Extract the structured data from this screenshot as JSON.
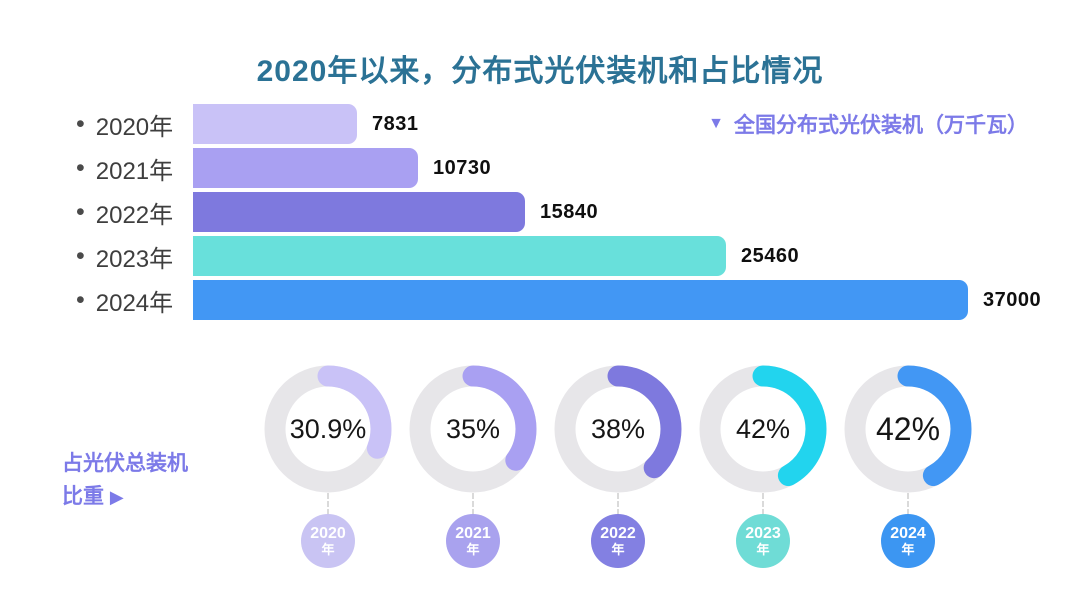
{
  "page": {
    "title": "2020年以来，分布式光伏装机和占比情况",
    "title_color": "#2B7295"
  },
  "legend": {
    "icon_name": "triangle-down-icon",
    "icon": "▼",
    "label": "全国分布式光伏装机（万千瓦）",
    "color": "#7C7AE8"
  },
  "bars": {
    "bullet": "•",
    "rows": [
      {
        "label": "2020年",
        "value": "7831",
        "color": "#C9C2F7"
      },
      {
        "label": "2021年",
        "value": "10730",
        "color": "#A9A0F2"
      },
      {
        "label": "2022年",
        "value": "15840",
        "color": "#7E79DE"
      },
      {
        "label": "2023年",
        "value": "25460",
        "color": "#68E0DB"
      },
      {
        "label": "2024年",
        "value": "37000",
        "color": "#4297F4"
      }
    ]
  },
  "donuts": {
    "track_color": "#E7E6E9",
    "items": [
      {
        "label": "30.9%",
        "percent": 30.9,
        "arc_color": "#C9C2F7",
        "year": "2020",
        "suffix": "年",
        "circle_color": "#C9C4F3"
      },
      {
        "label": "35%",
        "percent": 35,
        "arc_color": "#A9A0F2",
        "year": "2021",
        "suffix": "年",
        "circle_color": "#A9A2EE"
      },
      {
        "label": "38%",
        "percent": 38,
        "arc_color": "#7E79DE",
        "year": "2022",
        "suffix": "年",
        "circle_color": "#8380E2"
      },
      {
        "label": "42%",
        "percent": 42,
        "arc_color": "#22D4EE",
        "year": "2023",
        "suffix": "年",
        "circle_color": "#6FDCD6"
      },
      {
        "label": "42%",
        "percent": 42,
        "arc_color": "#4297F4",
        "year": "2024",
        "suffix": "年",
        "circle_color": "#3C96F2"
      }
    ]
  },
  "caption": {
    "line1": "占光伏总装机",
    "line2": "比重",
    "arrow": "▶",
    "color": "#7C7AE8"
  },
  "chart_data": [
    {
      "type": "bar",
      "orientation": "horizontal",
      "title": "2020年以来，分布式光伏装机和占比情况",
      "legend": "全国分布式光伏装机（万千瓦）",
      "legend_position": "top-right",
      "unit": "万千瓦",
      "categories": [
        "2020年",
        "2021年",
        "2022年",
        "2023年",
        "2024年"
      ],
      "values": [
        7831,
        10730,
        15840,
        25460,
        37000
      ],
      "bar_colors": [
        "#C9C2F7",
        "#A9A0F2",
        "#7E79DE",
        "#68E0DB",
        "#4297F4"
      ],
      "xlim": [
        0,
        39000
      ],
      "grid": false,
      "data_labels": true
    },
    {
      "type": "pie",
      "subtype": "donut-gauge-row",
      "title": "占光伏总装机比重",
      "categories": [
        "2020年",
        "2021年",
        "2022年",
        "2023年",
        "2024年"
      ],
      "values": [
        30.9,
        35,
        38,
        42,
        42
      ],
      "labels": [
        "30.9%",
        "35%",
        "38%",
        "42%",
        "42%"
      ],
      "unit": "%",
      "colors": [
        "#C9C2F7",
        "#A9A0F2",
        "#7E79DE",
        "#22D4EE",
        "#4297F4"
      ],
      "track_color": "#E7E6E9",
      "arc_start": "top",
      "arc_direction": "clockwise"
    }
  ]
}
